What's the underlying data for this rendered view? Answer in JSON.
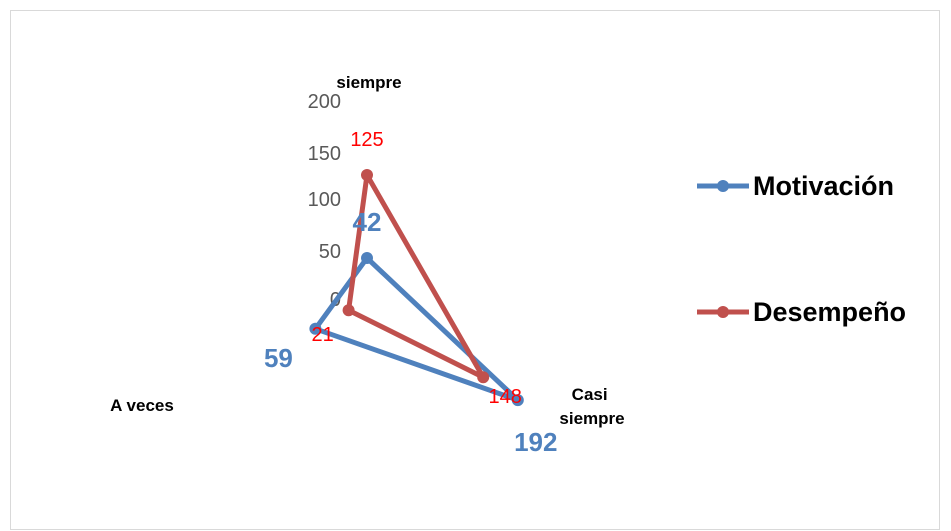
{
  "chart_data": {
    "type": "radar",
    "categories": [
      "siempre",
      "Casi siempre",
      "A veces"
    ],
    "radial_ticks": [
      "200",
      "150",
      "100",
      "50",
      "0"
    ],
    "rlim": [
      0,
      200
    ],
    "grid": false,
    "legend_position": "right",
    "series": [
      {
        "name": "Motivación",
        "values": [
          42,
          192,
          59
        ],
        "labels": [
          "42",
          "192",
          "59"
        ],
        "color": "#4f81bd"
      },
      {
        "name": "Desempeño",
        "values": [
          125,
          148,
          21
        ],
        "labels": [
          "125",
          "148",
          "21"
        ],
        "color": "#c0504d"
      }
    ]
  }
}
